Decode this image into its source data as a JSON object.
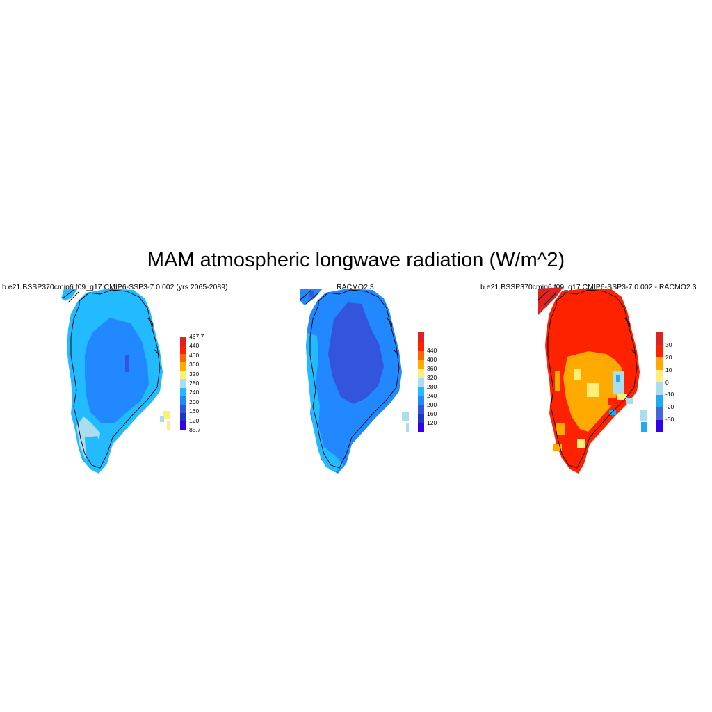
{
  "title": "MAM atmospheric longwave radiation (W/m^2)",
  "panels": [
    {
      "title": "b.e21.BSSP370cmip6.f09_g17.CMIP6-SSP3-7.0.002 (yrs 2065-2089)",
      "colorbar": {
        "colors": [
          "#3300ee",
          "#2233cc",
          "#3355dd",
          "#2288ff",
          "#22bbff",
          "#aaddee",
          "#ffee77",
          "#ffaa00",
          "#ff6600",
          "#ff2200",
          "#dd2222"
        ],
        "labels": [
          "85.7",
          "120",
          "160",
          "200",
          "240",
          "280",
          "320",
          "360",
          "400",
          "440",
          "467.7"
        ]
      }
    },
    {
      "title": "RACMO2.3",
      "colorbar": {
        "colors": [
          "#3300ee",
          "#2233cc",
          "#3355dd",
          "#2288ff",
          "#22bbff",
          "#aaddee",
          "#ffee77",
          "#ffaa00",
          "#ff6600",
          "#ff2200",
          "#dd2222"
        ],
        "labels": [
          "120",
          "160",
          "200",
          "240",
          "280",
          "320",
          "360",
          "400",
          "440"
        ]
      }
    },
    {
      "title": "b.e21.BSSP370cmip6.f09_g17.CMIP6-SSP3-7.0.002 - RACMO2.3",
      "colorbar": {
        "colors": [
          "#3300ee",
          "#4466dd",
          "#22aaee",
          "#aaddee",
          "#ffee77",
          "#ffaa00",
          "#ff2200",
          "#dd2222"
        ],
        "labels": [
          "-30",
          "-20",
          "-10",
          "0",
          "10",
          "20",
          "30"
        ]
      }
    }
  ]
}
